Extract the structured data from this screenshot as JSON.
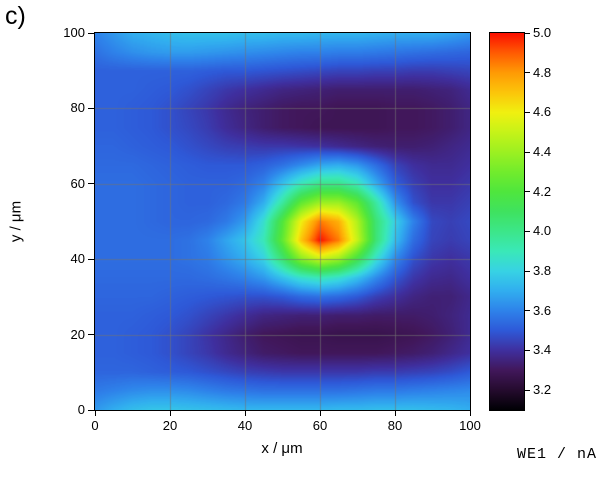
{
  "figure_label": "c)",
  "axes": {
    "x": {
      "label": "x / μm",
      "range": [
        0,
        100
      ],
      "ticks": [
        0,
        20,
        40,
        60,
        80,
        100
      ]
    },
    "y": {
      "label": "y / μm",
      "range": [
        0,
        100
      ],
      "ticks": [
        0,
        20,
        40,
        60,
        80,
        100
      ]
    }
  },
  "colorbar": {
    "label": "WE1 / nA",
    "range": [
      3.1,
      5.0
    ],
    "ticks": [
      3.2,
      3.4,
      3.6,
      3.8,
      4.0,
      4.2,
      4.4,
      4.6,
      4.8,
      5.0
    ],
    "stops": [
      {
        "value": 3.1,
        "color": "#000004"
      },
      {
        "value": 3.2,
        "color": "#250b2e"
      },
      {
        "value": 3.3,
        "color": "#41175a"
      },
      {
        "value": 3.4,
        "color": "#3f2f9e"
      },
      {
        "value": 3.5,
        "color": "#2e59d8"
      },
      {
        "value": 3.6,
        "color": "#2e82ea"
      },
      {
        "value": 3.7,
        "color": "#31aeef"
      },
      {
        "value": 3.8,
        "color": "#37d2e4"
      },
      {
        "value": 3.9,
        "color": "#3ae8b8"
      },
      {
        "value": 4.0,
        "color": "#3ce689"
      },
      {
        "value": 4.1,
        "color": "#3fe25f"
      },
      {
        "value": 4.2,
        "color": "#4fe63d"
      },
      {
        "value": 4.3,
        "color": "#72ec2c"
      },
      {
        "value": 4.4,
        "color": "#9cf021"
      },
      {
        "value": 4.5,
        "color": "#c6f318"
      },
      {
        "value": 4.6,
        "color": "#f0f010"
      },
      {
        "value": 4.7,
        "color": "#fcc50a"
      },
      {
        "value": 4.8,
        "color": "#ff9a04"
      },
      {
        "value": 4.9,
        "color": "#ff5b02"
      },
      {
        "value": 5.0,
        "color": "#fb0f00"
      }
    ]
  },
  "chart_data": {
    "type": "heatmap",
    "title": "c)",
    "xlabel": "x / μm",
    "ylabel": "y / μm",
    "zlabel": "WE1 / nA",
    "xlim": [
      0,
      100
    ],
    "ylim": [
      0,
      100
    ],
    "zlim": [
      3.1,
      5.0
    ],
    "grid": true,
    "x": [
      0,
      5,
      10,
      15,
      20,
      25,
      30,
      35,
      40,
      45,
      50,
      55,
      60,
      65,
      70,
      75,
      80,
      85,
      90,
      95,
      100
    ],
    "y": [
      0,
      5,
      10,
      15,
      20,
      25,
      30,
      35,
      40,
      45,
      50,
      55,
      60,
      65,
      70,
      75,
      80,
      85,
      90,
      95,
      100
    ],
    "values_row_order": "first row is y=100 (top), last row is y=0 (bottom)",
    "values": [
      [
        3.6,
        3.65,
        3.7,
        3.72,
        3.74,
        3.75,
        3.75,
        3.75,
        3.74,
        3.74,
        3.73,
        3.73,
        3.72,
        3.72,
        3.72,
        3.71,
        3.7,
        3.7,
        3.7,
        3.68,
        3.65
      ],
      [
        3.56,
        3.6,
        3.63,
        3.65,
        3.66,
        3.66,
        3.65,
        3.64,
        3.63,
        3.62,
        3.61,
        3.6,
        3.6,
        3.59,
        3.59,
        3.58,
        3.57,
        3.56,
        3.55,
        3.54,
        3.53
      ],
      [
        3.52,
        3.52,
        3.52,
        3.52,
        3.52,
        3.52,
        3.51,
        3.5,
        3.5,
        3.49,
        3.48,
        3.47,
        3.46,
        3.45,
        3.45,
        3.44,
        3.44,
        3.43,
        3.43,
        3.44,
        3.45
      ],
      [
        3.52,
        3.52,
        3.52,
        3.51,
        3.5,
        3.48,
        3.45,
        3.42,
        3.4,
        3.38,
        3.36,
        3.35,
        3.34,
        3.33,
        3.33,
        3.33,
        3.33,
        3.33,
        3.34,
        3.35,
        3.38
      ],
      [
        3.52,
        3.52,
        3.51,
        3.5,
        3.48,
        3.45,
        3.42,
        3.38,
        3.35,
        3.33,
        3.31,
        3.3,
        3.3,
        3.29,
        3.29,
        3.29,
        3.3,
        3.3,
        3.31,
        3.33,
        3.36
      ],
      [
        3.52,
        3.52,
        3.51,
        3.5,
        3.48,
        3.46,
        3.43,
        3.39,
        3.36,
        3.33,
        3.31,
        3.3,
        3.29,
        3.29,
        3.29,
        3.29,
        3.3,
        3.3,
        3.31,
        3.33,
        3.36
      ],
      [
        3.53,
        3.53,
        3.52,
        3.51,
        3.5,
        3.48,
        3.46,
        3.44,
        3.43,
        3.42,
        3.42,
        3.41,
        3.4,
        3.38,
        3.36,
        3.34,
        3.33,
        3.33,
        3.34,
        3.36,
        3.38
      ],
      [
        3.54,
        3.54,
        3.54,
        3.53,
        3.52,
        3.51,
        3.5,
        3.5,
        3.5,
        3.52,
        3.56,
        3.62,
        3.68,
        3.7,
        3.65,
        3.55,
        3.45,
        3.4,
        3.38,
        3.38,
        3.4
      ],
      [
        3.55,
        3.55,
        3.55,
        3.54,
        3.53,
        3.52,
        3.52,
        3.52,
        3.54,
        3.6,
        3.75,
        3.9,
        4.0,
        4.0,
        3.9,
        3.7,
        3.52,
        3.44,
        3.4,
        3.4,
        3.42
      ],
      [
        3.55,
        3.55,
        3.55,
        3.54,
        3.53,
        3.52,
        3.52,
        3.54,
        3.58,
        3.7,
        3.95,
        4.25,
        4.4,
        4.4,
        4.25,
        3.95,
        3.65,
        3.48,
        3.42,
        3.42,
        3.44
      ],
      [
        3.55,
        3.55,
        3.55,
        3.54,
        3.53,
        3.53,
        3.54,
        3.58,
        3.66,
        3.85,
        4.2,
        4.6,
        4.85,
        4.75,
        4.45,
        4.05,
        3.8,
        3.6,
        3.46,
        3.44,
        3.46
      ],
      [
        3.55,
        3.55,
        3.55,
        3.55,
        3.55,
        3.56,
        3.6,
        3.68,
        3.76,
        3.9,
        4.25,
        4.7,
        5.0,
        4.85,
        4.5,
        4.05,
        3.75,
        3.55,
        3.45,
        3.43,
        3.45
      ],
      [
        3.55,
        3.55,
        3.55,
        3.55,
        3.55,
        3.56,
        3.58,
        3.64,
        3.7,
        3.8,
        4.05,
        4.35,
        4.5,
        4.4,
        4.15,
        3.85,
        3.62,
        3.48,
        3.42,
        3.4,
        3.42
      ],
      [
        3.54,
        3.54,
        3.54,
        3.54,
        3.54,
        3.54,
        3.55,
        3.57,
        3.6,
        3.65,
        3.75,
        3.85,
        3.9,
        3.85,
        3.75,
        3.62,
        3.5,
        3.42,
        3.38,
        3.37,
        3.4
      ],
      [
        3.53,
        3.53,
        3.53,
        3.53,
        3.52,
        3.51,
        3.5,
        3.49,
        3.48,
        3.48,
        3.5,
        3.54,
        3.56,
        3.54,
        3.5,
        3.44,
        3.4,
        3.36,
        3.34,
        3.34,
        3.37
      ],
      [
        3.52,
        3.52,
        3.52,
        3.51,
        3.5,
        3.48,
        3.45,
        3.42,
        3.39,
        3.36,
        3.35,
        3.34,
        3.34,
        3.33,
        3.33,
        3.32,
        3.32,
        3.32,
        3.33,
        3.35,
        3.38
      ],
      [
        3.52,
        3.52,
        3.51,
        3.5,
        3.48,
        3.45,
        3.41,
        3.37,
        3.33,
        3.3,
        3.29,
        3.28,
        3.28,
        3.27,
        3.27,
        3.27,
        3.28,
        3.29,
        3.31,
        3.34,
        3.38
      ],
      [
        3.52,
        3.52,
        3.51,
        3.5,
        3.48,
        3.45,
        3.42,
        3.38,
        3.35,
        3.32,
        3.31,
        3.3,
        3.3,
        3.3,
        3.3,
        3.3,
        3.31,
        3.32,
        3.34,
        3.37,
        3.4
      ],
      [
        3.53,
        3.53,
        3.53,
        3.52,
        3.51,
        3.5,
        3.48,
        3.46,
        3.44,
        3.43,
        3.42,
        3.42,
        3.42,
        3.42,
        3.42,
        3.43,
        3.43,
        3.44,
        3.45,
        3.47,
        3.5
      ],
      [
        3.58,
        3.6,
        3.62,
        3.63,
        3.63,
        3.62,
        3.6,
        3.58,
        3.57,
        3.56,
        3.56,
        3.56,
        3.56,
        3.56,
        3.57,
        3.58,
        3.58,
        3.59,
        3.6,
        3.61,
        3.62
      ],
      [
        3.65,
        3.7,
        3.74,
        3.76,
        3.76,
        3.75,
        3.74,
        3.73,
        3.72,
        3.72,
        3.72,
        3.72,
        3.72,
        3.73,
        3.73,
        3.74,
        3.74,
        3.74,
        3.73,
        3.72,
        3.7
      ]
    ]
  }
}
